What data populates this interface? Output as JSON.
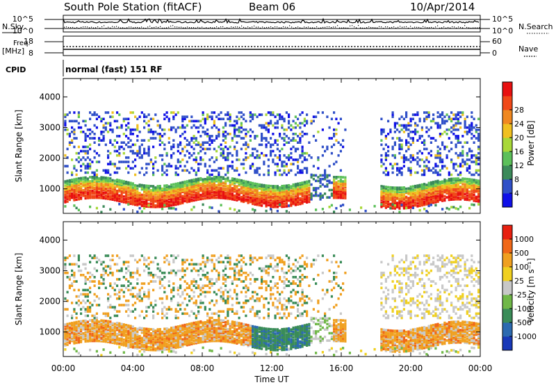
{
  "header": {
    "station": "South Pole Station (fitACF)",
    "beam": "Beam 06",
    "date": "10/Apr/2014"
  },
  "labels": {
    "nsky": "N.Sky",
    "nsearch": "N.Search",
    "freq_line1": "Freq.",
    "freq_line2": "[MHz]",
    "nave": "Nave",
    "cpid": "CPID",
    "cpid_value": "normal (fast) 151 RF",
    "noise_ticks_left": [
      "10^5",
      "10^0"
    ],
    "noise_ticks_right": [
      "10^5",
      "10^0"
    ],
    "freq_ticks_left": [
      "18",
      "8"
    ],
    "freq_ticks_right": [
      "60",
      "0"
    ]
  },
  "chart_data": [
    {
      "type": "heatmap",
      "name": "power-panel",
      "ylabel": "Slant Range [km]",
      "ylim": [
        200,
        4600
      ],
      "yticks": [
        "1000",
        "2000",
        "3000",
        "4000"
      ],
      "xticks": [
        "00:00",
        "04:00",
        "08:00",
        "12:00",
        "16:00",
        "20:00",
        "00:00"
      ],
      "xlim_hours": [
        0,
        24
      ],
      "colorbar": {
        "label": "Power [dB]",
        "ticks": [
          "4",
          "8",
          "12",
          "16",
          "20",
          "24",
          "28"
        ],
        "colors": [
          "#1010e8",
          "#3050c8",
          "#3c8a5a",
          "#5cc05a",
          "#a8d838",
          "#f0c020",
          "#f08820",
          "#f04818",
          "#e81010"
        ]
      }
    },
    {
      "type": "heatmap",
      "name": "velocity-panel",
      "ylabel": "Slant Range [km]",
      "ylim": [
        200,
        4600
      ],
      "yticks": [
        "1000",
        "2000",
        "3000",
        "4000"
      ],
      "xticks": [
        "00:00",
        "04:00",
        "08:00",
        "12:00",
        "16:00",
        "20:00",
        "00:00"
      ],
      "xlim_hours": [
        0,
        24
      ],
      "xlabel": "Time UT",
      "colorbar": {
        "label": "Velocity [m s⁻¹]",
        "ticks": [
          "1000",
          "500",
          "100",
          "25",
          "-25",
          "-100",
          "-500",
          "-1000"
        ],
        "colors": [
          "#1838b8",
          "#2c6ab0",
          "#3a8c58",
          "#70b848",
          "#c8c8c8",
          "#f0d020",
          "#f0a020",
          "#f06818",
          "#e82010"
        ]
      }
    }
  ]
}
